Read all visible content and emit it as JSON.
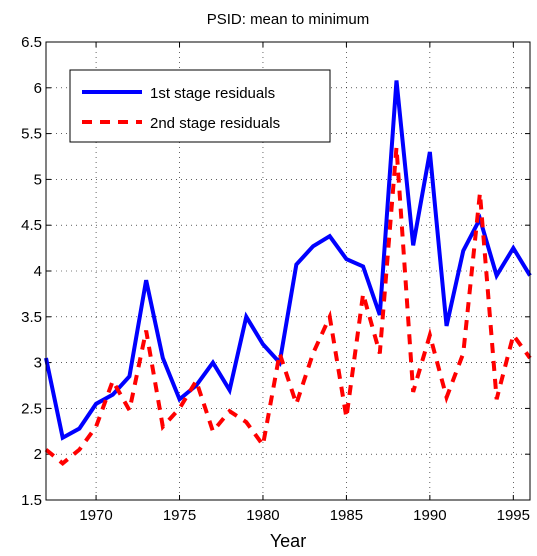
{
  "chart_data": {
    "type": "line",
    "title": "PSID: mean to minimum",
    "x_label": "Year",
    "x": [
      1967,
      1968,
      1969,
      1970,
      1971,
      1972,
      1973,
      1974,
      1975,
      1976,
      1977,
      1978,
      1979,
      1980,
      1981,
      1982,
      1983,
      1984,
      1985,
      1986,
      1987,
      1988,
      1989,
      1990,
      1991,
      1992,
      1993,
      1994,
      1995,
      1996
    ],
    "series": [
      {
        "name": "1st stage residuals",
        "color": "#0000ff",
        "dash": false,
        "values": [
          3.05,
          2.18,
          2.28,
          2.55,
          2.65,
          2.85,
          3.9,
          3.05,
          2.6,
          2.75,
          3.0,
          2.7,
          3.5,
          3.2,
          3.0,
          4.07,
          4.27,
          4.38,
          4.13,
          4.05,
          3.52,
          6.08,
          4.28,
          5.3,
          3.4,
          4.22,
          4.57,
          3.95,
          4.25,
          3.95
        ]
      },
      {
        "name": "2nd stage residuals",
        "color": "#ff0000",
        "dash": true,
        "values": [
          2.05,
          1.9,
          2.05,
          2.3,
          2.8,
          2.48,
          3.35,
          2.3,
          2.5,
          2.8,
          2.25,
          2.47,
          2.35,
          2.1,
          3.1,
          2.55,
          3.1,
          3.5,
          2.4,
          3.75,
          3.1,
          5.35,
          2.68,
          3.3,
          2.62,
          3.1,
          4.85,
          2.6,
          3.3,
          3.05
        ]
      }
    ],
    "xlim": [
      1967,
      1996
    ],
    "xticks": [
      1970,
      1975,
      1980,
      1985,
      1990,
      1995
    ],
    "ylim": [
      1.5,
      6.5
    ],
    "yticks": [
      1.5,
      2,
      2.5,
      3,
      3.5,
      4,
      4.5,
      5,
      5.5,
      6,
      6.5
    ],
    "grid": true,
    "legend": "upper left"
  }
}
